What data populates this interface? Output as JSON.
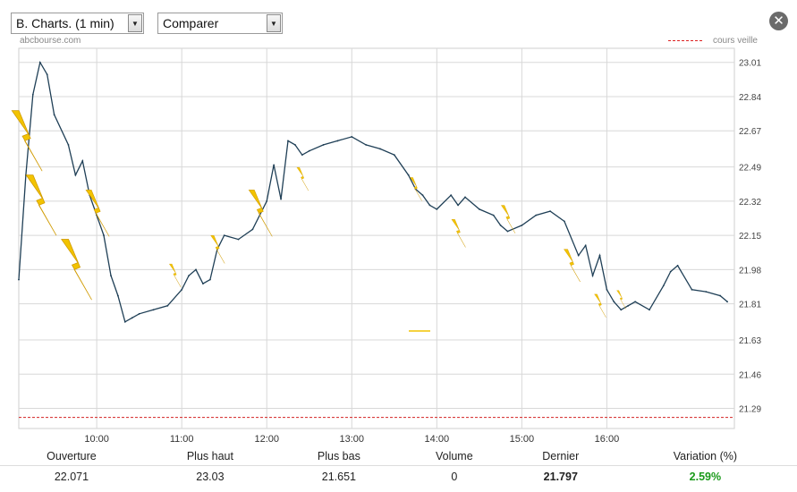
{
  "controls": {
    "chart_select": "B. Charts. (1 min)",
    "compare_select": "Comparer"
  },
  "source": "abcbourse.com",
  "legend_label": "cours veille",
  "colors": {
    "line": "#1f3f56",
    "reference": "#d22222",
    "signal": "#f2c300",
    "positive": "#1a9a1a"
  },
  "chart_data": {
    "type": "line",
    "x_ticks": [
      "10:00",
      "11:00",
      "12:00",
      "13:00",
      "14:00",
      "15:00",
      "16:00"
    ],
    "x_range": [
      "09:05",
      "17:30"
    ],
    "y_ticks": [
      23.01,
      22.84,
      22.67,
      22.49,
      22.32,
      22.15,
      21.98,
      21.81,
      21.63,
      21.46,
      21.29
    ],
    "ylim": [
      21.19,
      23.08
    ],
    "reference_line": {
      "label": "cours veille",
      "value": 21.245
    },
    "grid": true,
    "legend": "top-right",
    "series": [
      {
        "x": [
          "09:05",
          "09:10",
          "09:15",
          "09:20",
          "09:25",
          "09:30",
          "09:40",
          "09:45",
          "09:50",
          "09:55",
          "10:00",
          "10:05",
          "10:10",
          "10:15",
          "10:20",
          "10:25",
          "10:30",
          "10:40",
          "10:50",
          "11:00",
          "11:05",
          "11:10",
          "11:15",
          "11:20",
          "11:25",
          "11:30",
          "11:40",
          "11:50",
          "12:00",
          "12:05",
          "12:10",
          "12:15",
          "12:20",
          "12:25",
          "12:30",
          "12:40",
          "12:50",
          "13:00",
          "13:10",
          "13:20",
          "13:30",
          "13:40",
          "13:45",
          "13:50",
          "13:55",
          "14:00",
          "14:10",
          "14:15",
          "14:20",
          "14:30",
          "14:40",
          "14:45",
          "14:50",
          "15:00",
          "15:10",
          "15:20",
          "15:30",
          "15:40",
          "15:45",
          "15:50",
          "15:55",
          "16:00",
          "16:05",
          "16:10",
          "16:15",
          "16:20",
          "16:30",
          "16:40",
          "16:45",
          "16:50",
          "17:00",
          "17:10",
          "17:20",
          "17:25"
        ],
        "y": [
          21.93,
          22.45,
          22.85,
          23.01,
          22.95,
          22.75,
          22.6,
          22.45,
          22.52,
          22.35,
          22.25,
          22.15,
          21.95,
          21.85,
          21.72,
          21.74,
          21.76,
          21.78,
          21.8,
          21.88,
          21.95,
          21.98,
          21.91,
          21.93,
          22.08,
          22.15,
          22.13,
          22.18,
          22.32,
          22.5,
          22.33,
          22.62,
          22.6,
          22.55,
          22.57,
          22.6,
          22.62,
          22.64,
          22.6,
          22.58,
          22.55,
          22.45,
          22.38,
          22.35,
          22.3,
          22.28,
          22.35,
          22.3,
          22.34,
          22.28,
          22.25,
          22.2,
          22.17,
          22.2,
          22.25,
          22.27,
          22.22,
          22.05,
          22.1,
          21.95,
          22.05,
          21.88,
          21.82,
          21.78,
          21.8,
          21.82,
          21.78,
          21.9,
          21.97,
          22.0,
          21.88,
          21.87,
          21.85,
          21.82
        ]
      }
    ]
  },
  "stats": {
    "headers": [
      "Ouverture",
      "Plus haut",
      "Plus bas",
      "Volume",
      "Dernier",
      "Variation (%)"
    ],
    "values": [
      "22.071",
      "23.03",
      "21.651",
      "0",
      "21.797",
      "2.59%"
    ]
  }
}
